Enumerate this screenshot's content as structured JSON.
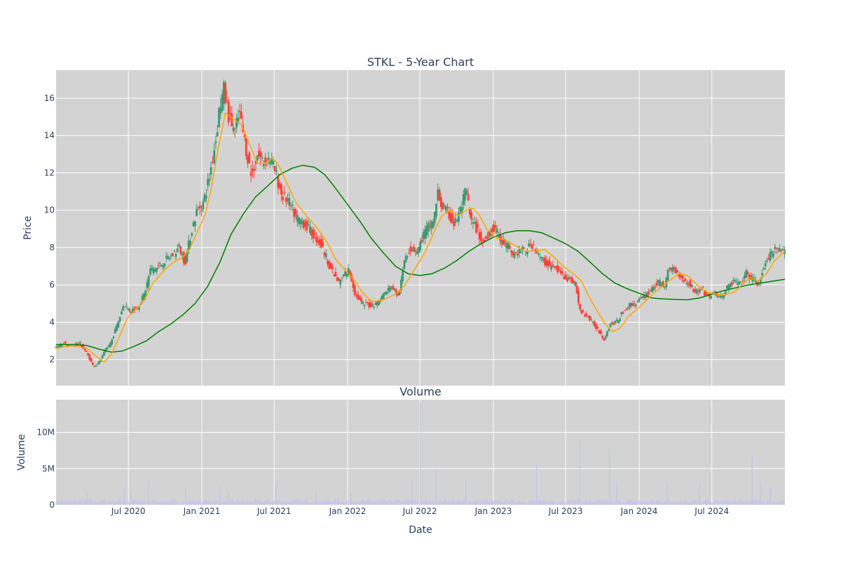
{
  "chart_data": [
    {
      "type": "candlestick",
      "title": "STKL - 5-Year Chart",
      "ylabel": "Price",
      "xlabel": "",
      "xlim": [
        "2020-01-02",
        "2024-12-31"
      ],
      "ylim": [
        0.6,
        17.5
      ],
      "y_ticks": [
        "2",
        "4",
        "6",
        "8",
        "10",
        "12",
        "14",
        "16"
      ],
      "x_tick_dates": [
        "2020-07-01",
        "2021-01-01",
        "2021-07-01",
        "2022-01-01",
        "2022-07-01",
        "2023-01-01",
        "2023-07-01",
        "2024-01-01",
        "2024-07-01"
      ],
      "grid": true,
      "plot_background": "#d3d3d3",
      "colors": {
        "increasing": "#3d9970",
        "decreasing": "#ff4136",
        "ma_short": "#ffa500",
        "ma_long": "#008000"
      },
      "price_path": [
        [
          "2020-01-02",
          2.6
        ],
        [
          "2020-01-20",
          2.9
        ],
        [
          "2020-02-10",
          2.7
        ],
        [
          "2020-03-01",
          2.9
        ],
        [
          "2020-03-20",
          2.3
        ],
        [
          "2020-04-05",
          1.6
        ],
        [
          "2020-04-20",
          1.9
        ],
        [
          "2020-05-05",
          2.5
        ],
        [
          "2020-05-20",
          3.0
        ],
        [
          "2020-06-05",
          4.0
        ],
        [
          "2020-06-20",
          5.0
        ],
        [
          "2020-07-05",
          4.6
        ],
        [
          "2020-07-25",
          4.8
        ],
        [
          "2020-08-10",
          5.5
        ],
        [
          "2020-08-25",
          6.8
        ],
        [
          "2020-09-10",
          6.9
        ],
        [
          "2020-10-01",
          7.3
        ],
        [
          "2020-10-20",
          7.6
        ],
        [
          "2020-11-05",
          8.0
        ],
        [
          "2020-11-20",
          7.2
        ],
        [
          "2020-12-05",
          8.8
        ],
        [
          "2020-12-20",
          10.0
        ],
        [
          "2021-01-05",
          10.4
        ],
        [
          "2021-01-20",
          11.8
        ],
        [
          "2021-02-05",
          13.8
        ],
        [
          "2021-02-15",
          15.6
        ],
        [
          "2021-02-25",
          16.4
        ],
        [
          "2021-03-10",
          15.0
        ],
        [
          "2021-03-25",
          14.2
        ],
        [
          "2021-04-05",
          15.2
        ],
        [
          "2021-04-20",
          13.5
        ],
        [
          "2021-05-05",
          11.8
        ],
        [
          "2021-05-20",
          13.0
        ],
        [
          "2021-06-05",
          12.6
        ],
        [
          "2021-06-20",
          12.8
        ],
        [
          "2021-07-05",
          12.0
        ],
        [
          "2021-07-20",
          10.8
        ],
        [
          "2021-08-05",
          10.5
        ],
        [
          "2021-08-25",
          9.6
        ],
        [
          "2021-09-10",
          9.4
        ],
        [
          "2021-09-25",
          9.0
        ],
        [
          "2021-10-10",
          8.6
        ],
        [
          "2021-10-25",
          8.2
        ],
        [
          "2021-11-10",
          7.4
        ],
        [
          "2021-11-25",
          6.6
        ],
        [
          "2021-12-10",
          6.1
        ],
        [
          "2021-12-25",
          6.6
        ],
        [
          "2022-01-05",
          6.8
        ],
        [
          "2022-01-20",
          5.5
        ],
        [
          "2022-02-05",
          5.0
        ],
        [
          "2022-02-25",
          4.9
        ],
        [
          "2022-03-15",
          5.0
        ],
        [
          "2022-04-01",
          5.5
        ],
        [
          "2022-04-20",
          5.9
        ],
        [
          "2022-05-10",
          5.4
        ],
        [
          "2022-05-25",
          7.6
        ],
        [
          "2022-06-10",
          8.0
        ],
        [
          "2022-06-25",
          7.8
        ],
        [
          "2022-07-10",
          8.7
        ],
        [
          "2022-07-25",
          9.2
        ],
        [
          "2022-08-05",
          9.5
        ],
        [
          "2022-08-15",
          10.9
        ],
        [
          "2022-08-25",
          10.2
        ],
        [
          "2022-09-10",
          9.8
        ],
        [
          "2022-09-25",
          9.2
        ],
        [
          "2022-10-10",
          10.0
        ],
        [
          "2022-10-25",
          11.1
        ],
        [
          "2022-11-05",
          9.4
        ],
        [
          "2022-11-20",
          9.0
        ],
        [
          "2022-12-05",
          8.2
        ],
        [
          "2022-12-20",
          8.8
        ],
        [
          "2023-01-05",
          9.1
        ],
        [
          "2023-01-20",
          8.3
        ],
        [
          "2023-02-05",
          8.1
        ],
        [
          "2023-02-20",
          7.6
        ],
        [
          "2023-03-10",
          7.8
        ],
        [
          "2023-03-25",
          7.9
        ],
        [
          "2023-04-10",
          8.2
        ],
        [
          "2023-04-25",
          7.5
        ],
        [
          "2023-05-10",
          7.2
        ],
        [
          "2023-05-25",
          7.0
        ],
        [
          "2023-06-10",
          6.8
        ],
        [
          "2023-06-25",
          6.5
        ],
        [
          "2023-07-10",
          6.3
        ],
        [
          "2023-07-25",
          6.1
        ],
        [
          "2023-08-05",
          4.6
        ],
        [
          "2023-08-20",
          4.4
        ],
        [
          "2023-09-05",
          4.0
        ],
        [
          "2023-09-20",
          3.6
        ],
        [
          "2023-10-05",
          3.1
        ],
        [
          "2023-10-20",
          3.9
        ],
        [
          "2023-11-05",
          4.0
        ],
        [
          "2023-11-20",
          4.5
        ],
        [
          "2023-12-05",
          4.9
        ],
        [
          "2023-12-20",
          5.0
        ],
        [
          "2024-01-05",
          5.2
        ],
        [
          "2024-01-20",
          5.5
        ],
        [
          "2024-02-05",
          5.9
        ],
        [
          "2024-02-20",
          6.1
        ],
        [
          "2024-03-05",
          6.0
        ],
        [
          "2024-03-15",
          6.8
        ],
        [
          "2024-03-25",
          6.9
        ],
        [
          "2024-04-10",
          6.6
        ],
        [
          "2024-04-25",
          6.2
        ],
        [
          "2024-05-10",
          6.0
        ],
        [
          "2024-05-20",
          5.6
        ],
        [
          "2024-06-05",
          5.8
        ],
        [
          "2024-06-20",
          5.4
        ],
        [
          "2024-07-10",
          5.5
        ],
        [
          "2024-07-25",
          5.3
        ],
        [
          "2024-08-10",
          5.9
        ],
        [
          "2024-08-25",
          6.2
        ],
        [
          "2024-09-10",
          6.0
        ],
        [
          "2024-09-25",
          6.6
        ],
        [
          "2024-10-10",
          6.3
        ],
        [
          "2024-10-25",
          6.0
        ],
        [
          "2024-11-10",
          7.0
        ],
        [
          "2024-11-25",
          7.6
        ],
        [
          "2024-12-10",
          7.9
        ],
        [
          "2024-12-31",
          7.7
        ]
      ],
      "ma_short": [
        [
          "2020-01-02",
          2.6
        ],
        [
          "2020-02-15",
          2.75
        ],
        [
          "2020-03-20",
          2.6
        ],
        [
          "2020-04-15",
          2.1
        ],
        [
          "2020-05-01",
          1.85
        ],
        [
          "2020-05-20",
          2.3
        ],
        [
          "2020-06-10",
          3.3
        ],
        [
          "2020-07-01",
          4.3
        ],
        [
          "2020-07-20",
          4.7
        ],
        [
          "2020-08-10",
          5.2
        ],
        [
          "2020-09-01",
          6.1
        ],
        [
          "2020-09-25",
          6.7
        ],
        [
          "2020-10-20",
          7.2
        ],
        [
          "2020-11-15",
          7.5
        ],
        [
          "2020-12-01",
          7.9
        ],
        [
          "2020-12-20",
          8.8
        ],
        [
          "2021-01-10",
          9.8
        ],
        [
          "2021-01-25",
          11.2
        ],
        [
          "2021-02-10",
          13.2
        ],
        [
          "2021-03-01",
          15.2
        ],
        [
          "2021-03-20",
          14.9
        ],
        [
          "2021-04-10",
          14.6
        ],
        [
          "2021-05-01",
          13.5
        ],
        [
          "2021-05-20",
          12.5
        ],
        [
          "2021-06-10",
          12.5
        ],
        [
          "2021-06-25",
          12.8
        ],
        [
          "2021-07-10",
          12.5
        ],
        [
          "2021-08-01",
          11.5
        ],
        [
          "2021-08-25",
          10.4
        ],
        [
          "2021-09-20",
          9.7
        ],
        [
          "2021-10-15",
          9.1
        ],
        [
          "2021-11-10",
          8.3
        ],
        [
          "2021-12-01",
          7.4
        ],
        [
          "2021-12-25",
          6.8
        ],
        [
          "2022-01-20",
          6.2
        ],
        [
          "2022-02-10",
          5.5
        ],
        [
          "2022-03-05",
          5.1
        ],
        [
          "2022-04-01",
          5.2
        ],
        [
          "2022-05-01",
          5.5
        ],
        [
          "2022-05-25",
          6.0
        ],
        [
          "2022-06-20",
          6.9
        ],
        [
          "2022-07-15",
          7.8
        ],
        [
          "2022-08-05",
          8.8
        ],
        [
          "2022-08-25",
          9.7
        ],
        [
          "2022-09-15",
          10.0
        ],
        [
          "2022-10-05",
          9.7
        ],
        [
          "2022-10-25",
          10.0
        ],
        [
          "2022-11-10",
          10.1
        ],
        [
          "2022-11-25",
          9.8
        ],
        [
          "2022-12-15",
          9.0
        ],
        [
          "2023-01-10",
          8.5
        ],
        [
          "2023-02-01",
          8.4
        ],
        [
          "2023-02-25",
          8.1
        ],
        [
          "2023-03-20",
          7.8
        ],
        [
          "2023-04-15",
          7.8
        ],
        [
          "2023-05-10",
          7.9
        ],
        [
          "2023-06-01",
          7.5
        ],
        [
          "2023-06-25",
          7.0
        ],
        [
          "2023-07-20",
          6.6
        ],
        [
          "2023-08-10",
          6.2
        ],
        [
          "2023-08-25",
          5.5
        ],
        [
          "2023-09-15",
          4.7
        ],
        [
          "2023-10-05",
          4.0
        ],
        [
          "2023-10-25",
          3.5
        ],
        [
          "2023-11-15",
          3.7
        ],
        [
          "2023-12-05",
          4.3
        ],
        [
          "2024-01-01",
          4.8
        ],
        [
          "2024-01-25",
          5.3
        ],
        [
          "2024-02-20",
          5.8
        ],
        [
          "2024-03-15",
          6.2
        ],
        [
          "2024-04-10",
          6.6
        ],
        [
          "2024-05-01",
          6.5
        ],
        [
          "2024-05-25",
          6.0
        ],
        [
          "2024-06-20",
          5.6
        ],
        [
          "2024-07-15",
          5.5
        ],
        [
          "2024-08-05",
          5.5
        ],
        [
          "2024-08-25",
          5.6
        ],
        [
          "2024-09-15",
          6.0
        ],
        [
          "2024-10-05",
          6.4
        ],
        [
          "2024-10-25",
          6.2
        ],
        [
          "2024-11-15",
          6.6
        ],
        [
          "2024-12-05",
          7.3
        ],
        [
          "2024-12-31",
          7.8
        ]
      ],
      "ma_long": [
        [
          "2020-01-02",
          2.8
        ],
        [
          "2020-02-15",
          2.8
        ],
        [
          "2020-03-20",
          2.75
        ],
        [
          "2020-04-20",
          2.55
        ],
        [
          "2020-05-20",
          2.4
        ],
        [
          "2020-06-15",
          2.45
        ],
        [
          "2020-07-15",
          2.7
        ],
        [
          "2020-08-15",
          3.0
        ],
        [
          "2020-09-15",
          3.5
        ],
        [
          "2020-10-15",
          3.9
        ],
        [
          "2020-11-15",
          4.4
        ],
        [
          "2020-12-15",
          5.0
        ],
        [
          "2021-01-15",
          5.9
        ],
        [
          "2021-02-15",
          7.2
        ],
        [
          "2021-03-15",
          8.7
        ],
        [
          "2021-04-15",
          9.8
        ],
        [
          "2021-05-15",
          10.7
        ],
        [
          "2021-06-15",
          11.3
        ],
        [
          "2021-07-15",
          11.9
        ],
        [
          "2021-08-15",
          12.25
        ],
        [
          "2021-09-10",
          12.4
        ],
        [
          "2021-10-10",
          12.3
        ],
        [
          "2021-11-05",
          11.9
        ],
        [
          "2021-12-01",
          11.2
        ],
        [
          "2022-01-01",
          10.3
        ],
        [
          "2022-02-01",
          9.4
        ],
        [
          "2022-03-01",
          8.5
        ],
        [
          "2022-04-01",
          7.7
        ],
        [
          "2022-05-01",
          7.0
        ],
        [
          "2022-06-01",
          6.6
        ],
        [
          "2022-07-01",
          6.5
        ],
        [
          "2022-08-01",
          6.6
        ],
        [
          "2022-09-01",
          6.9
        ],
        [
          "2022-10-01",
          7.3
        ],
        [
          "2022-11-01",
          7.8
        ],
        [
          "2022-12-01",
          8.2
        ],
        [
          "2023-01-01",
          8.55
        ],
        [
          "2023-02-01",
          8.8
        ],
        [
          "2023-03-01",
          8.9
        ],
        [
          "2023-04-01",
          8.9
        ],
        [
          "2023-05-01",
          8.8
        ],
        [
          "2023-06-01",
          8.5
        ],
        [
          "2023-07-01",
          8.2
        ],
        [
          "2023-08-01",
          7.8
        ],
        [
          "2023-09-01",
          7.2
        ],
        [
          "2023-10-01",
          6.6
        ],
        [
          "2023-11-01",
          6.1
        ],
        [
          "2023-12-01",
          5.8
        ],
        [
          "2024-01-01",
          5.55
        ],
        [
          "2024-02-01",
          5.3
        ],
        [
          "2024-03-01",
          5.25
        ],
        [
          "2024-04-01",
          5.22
        ],
        [
          "2024-05-01",
          5.2
        ],
        [
          "2024-06-01",
          5.3
        ],
        [
          "2024-07-01",
          5.5
        ],
        [
          "2024-08-01",
          5.7
        ],
        [
          "2024-09-01",
          5.85
        ],
        [
          "2024-10-01",
          6.0
        ],
        [
          "2024-11-01",
          6.1
        ],
        [
          "2024-12-01",
          6.2
        ],
        [
          "2024-12-31",
          6.3
        ]
      ]
    },
    {
      "type": "bar",
      "title": "Volume",
      "ylabel": "Volume",
      "xlabel": "Date",
      "xlim": [
        "2020-01-02",
        "2024-12-31"
      ],
      "ylim": [
        0,
        14500000
      ],
      "y_ticks": [
        "0",
        "5M",
        "10M"
      ],
      "x_ticks": [
        "Jul 2020",
        "Jan 2021",
        "Jul 2021",
        "Jan 2022",
        "Jul 2022",
        "Jan 2023",
        "Jul 2023",
        "Jan 2024",
        "Jul 2024"
      ],
      "bar_color": "#c3c3f0",
      "baseline_volume": 500000,
      "spikes": [
        [
          "2020-03-20",
          1800000
        ],
        [
          "2020-06-20",
          2200000
        ],
        [
          "2020-07-05",
          2000000
        ],
        [
          "2020-08-20",
          3300000
        ],
        [
          "2020-11-20",
          2800000
        ],
        [
          "2021-02-15",
          2500000
        ],
        [
          "2021-03-10",
          1800000
        ],
        [
          "2021-07-05",
          3100000
        ],
        [
          "2021-10-15",
          2000000
        ],
        [
          "2022-01-10",
          1500000
        ],
        [
          "2022-06-10",
          3400000
        ],
        [
          "2022-07-01",
          14100000
        ],
        [
          "2022-08-10",
          4800000
        ],
        [
          "2022-10-25",
          3700000
        ],
        [
          "2023-04-20",
          5700000
        ],
        [
          "2023-08-05",
          8800000
        ],
        [
          "2023-10-20",
          7700000
        ],
        [
          "2023-11-05",
          3000000
        ],
        [
          "2024-03-10",
          3200000
        ],
        [
          "2024-06-01",
          3100000
        ],
        [
          "2024-10-10",
          6900000
        ],
        [
          "2024-11-01",
          3100000
        ],
        [
          "2024-11-25",
          2500000
        ]
      ]
    }
  ]
}
